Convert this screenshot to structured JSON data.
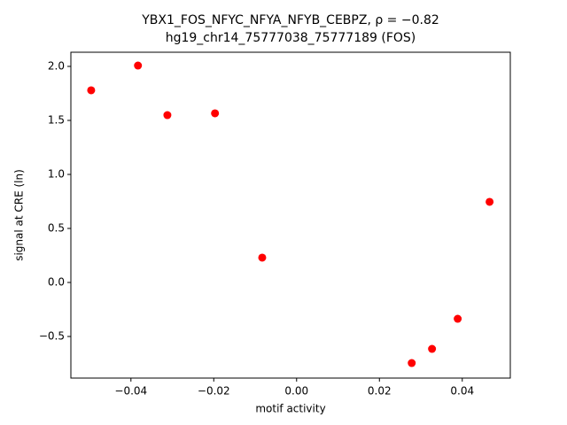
{
  "chart_data": {
    "type": "scatter",
    "title": "YBX1_FOS_NFYC_NFYA_NFYB_CEBPZ, ρ = −0.82",
    "subtitle": "hg19_chr14_75777038_75777189 (FOS)",
    "x_label": "motif activity",
    "y_label": "signal at CRE (ln)",
    "color": "#ff0000",
    "x": [
      -0.0496,
      -0.0383,
      -0.0312,
      -0.0197,
      -0.0083,
      0.0278,
      0.0327,
      0.0389,
      0.0466
    ],
    "values": [
      1.779,
      2.008,
      1.549,
      1.566,
      0.23,
      -0.746,
      -0.615,
      -0.336,
      0.746
    ],
    "xlim": [
      -0.0545,
      0.0516
    ],
    "ylim": [
      -0.885,
      2.131
    ],
    "xticks": [
      {
        "value": -0.04,
        "label": "−0.04"
      },
      {
        "value": -0.02,
        "label": "−0.02"
      },
      {
        "value": 0,
        "label": "0.00"
      },
      0.02,
      0.04
    ],
    "yticks": [
      {
        "value": -0.5,
        "label": "−0.5"
      },
      {
        "value": 0,
        "label": "0.0"
      },
      0.5,
      {
        "value": 1,
        "label": "1.0"
      },
      1.5,
      {
        "value": 2,
        "label": "2.0"
      }
    ],
    "grid": false
  }
}
